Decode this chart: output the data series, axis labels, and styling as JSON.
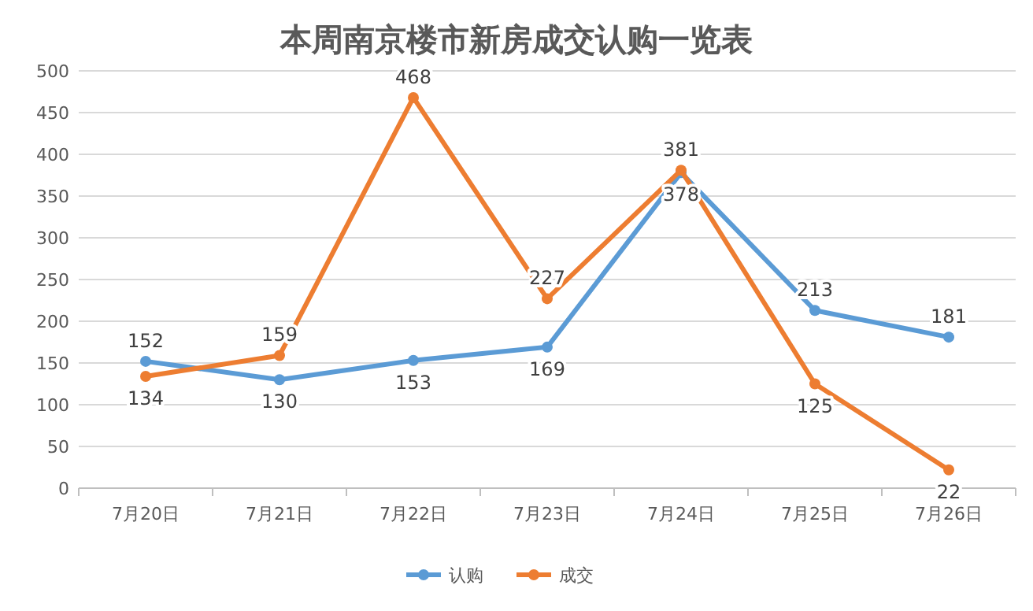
{
  "chart_data": {
    "type": "line",
    "title": "本周南京楼市新房成交认购一览表",
    "categories": [
      "7月20日",
      "7月21日",
      "7月22日",
      "7月23日",
      "7月24日",
      "7月25日",
      "7月26日"
    ],
    "series": [
      {
        "name": "认购",
        "color": "#5b9bd5",
        "values": [
          152,
          130,
          153,
          169,
          378,
          213,
          181
        ]
      },
      {
        "name": "成交",
        "color": "#ed7d31",
        "values": [
          134,
          159,
          468,
          227,
          381,
          125,
          22
        ]
      }
    ],
    "ylim": [
      0,
      500
    ],
    "yticks": [
      0,
      50,
      100,
      150,
      200,
      250,
      300,
      350,
      400,
      450,
      500
    ],
    "grid": "y",
    "legend": "bottom",
    "marker": "circle",
    "line_style": "solid",
    "data_labels": true
  }
}
